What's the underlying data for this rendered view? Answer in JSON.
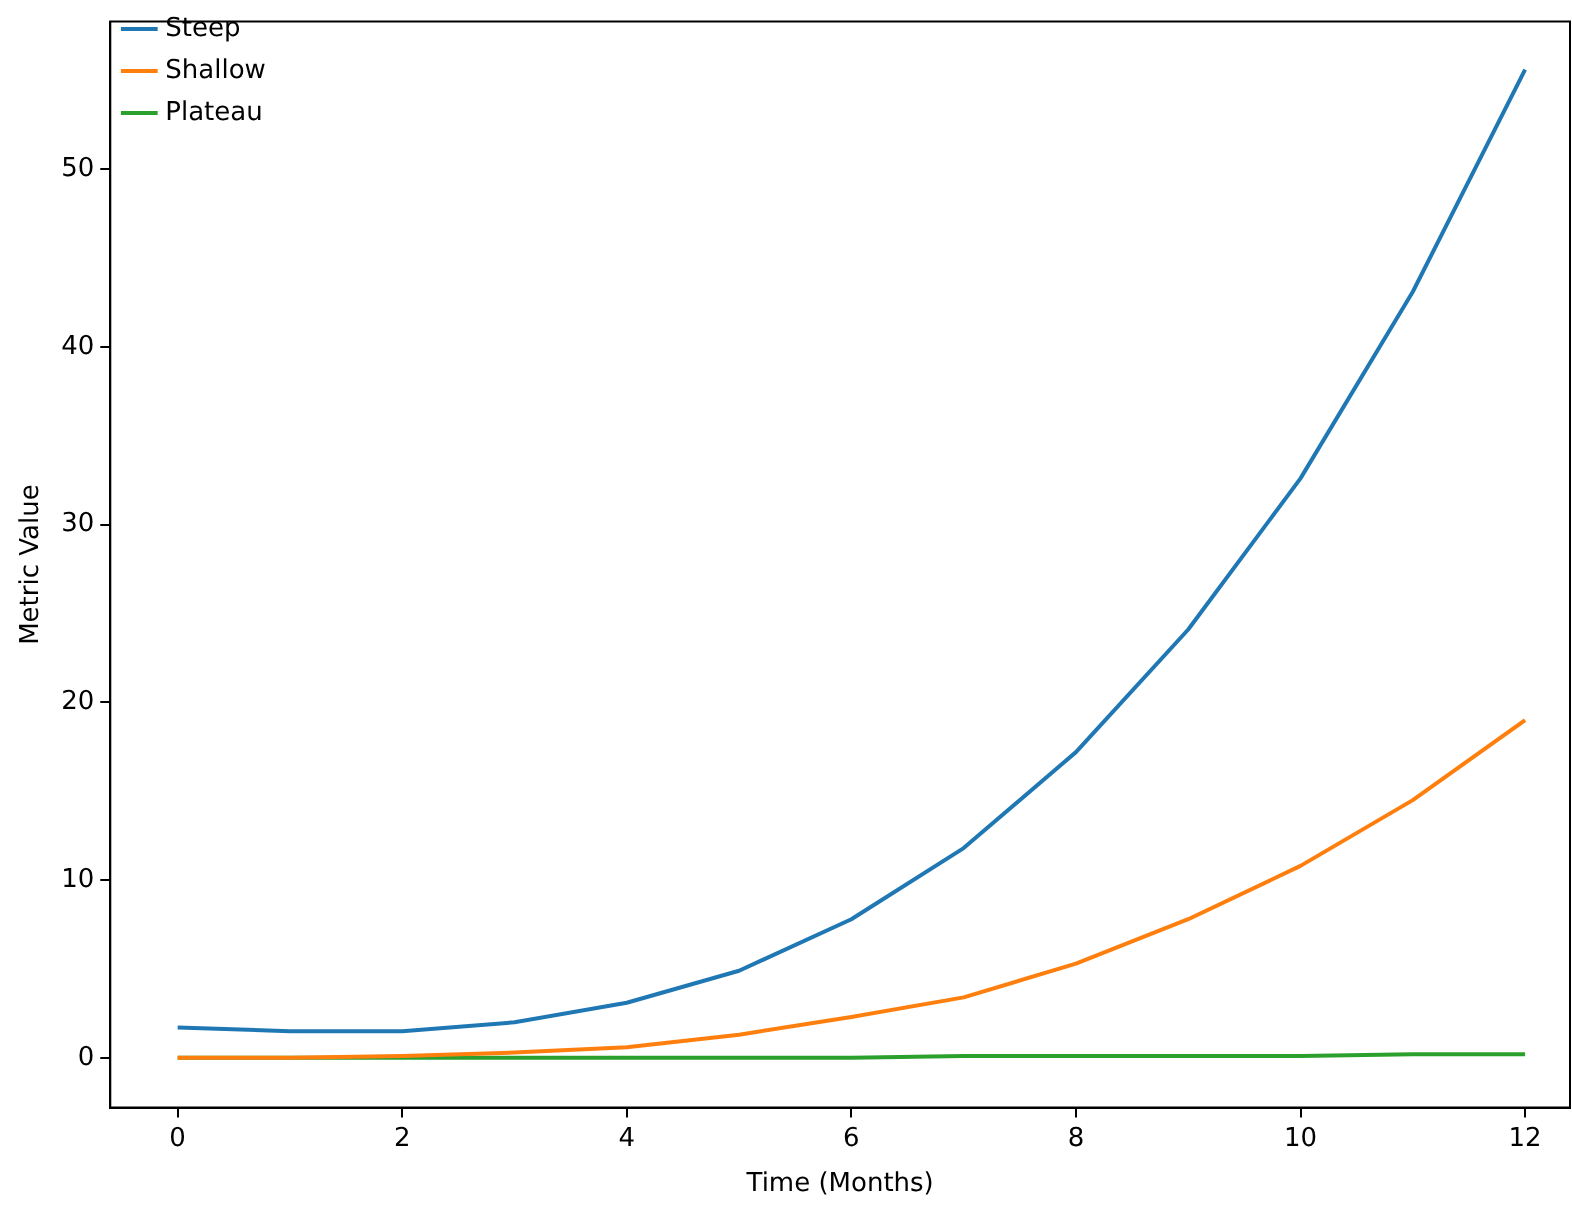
{
  "chart_data": {
    "type": "line",
    "xlabel": "Time (Months)",
    "ylabel": "Metric Value",
    "x": [
      0,
      1,
      2,
      3,
      4,
      5,
      6,
      7,
      8,
      9,
      10,
      11,
      12
    ],
    "series": [
      {
        "name": "Steep",
        "color": "#1f77b4",
        "values": [
          1.7,
          1.5,
          1.5,
          2.0,
          3.1,
          4.9,
          7.8,
          11.8,
          17.2,
          24.1,
          32.6,
          43.1,
          55.6
        ]
      },
      {
        "name": "Shallow",
        "color": "#ff7f0e",
        "values": [
          0,
          0,
          0.1,
          0.3,
          0.6,
          1.3,
          2.3,
          3.4,
          5.3,
          7.8,
          10.8,
          14.5,
          19.0
        ]
      },
      {
        "name": "Plateau",
        "color": "#2ca02c",
        "values": [
          0,
          0,
          0,
          0,
          0,
          0,
          0,
          0.1,
          0.1,
          0.1,
          0.1,
          0.2,
          0.2
        ]
      }
    ],
    "xlim": [
      -0.6,
      12.4
    ],
    "ylim": [
      -2.8,
      58.3
    ],
    "xticks": [
      0,
      2,
      4,
      6,
      8,
      10,
      12
    ],
    "yticks": [
      0,
      10,
      20,
      30,
      40,
      50
    ],
    "grid": false,
    "legend": "top left",
    "line_style": "solid",
    "marker": "none"
  }
}
